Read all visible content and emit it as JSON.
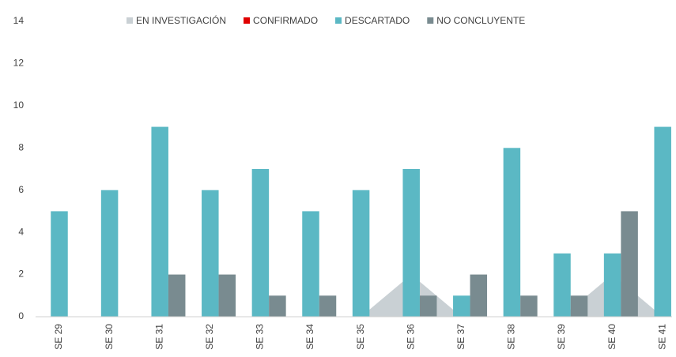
{
  "chart_data": {
    "type": "bar",
    "categories": [
      "SE 29",
      "SE 30",
      "SE 31",
      "SE 32",
      "SE 33",
      "SE 34",
      "SE 35",
      "SE 36",
      "SE 37",
      "SE 38",
      "SE 39",
      "SE 40",
      "SE 41"
    ],
    "series": [
      {
        "name": "EN INVESTIGACIÓN",
        "color": "#c9d0d4",
        "kind": "area",
        "values": [
          0,
          0,
          0,
          0,
          0,
          0,
          0,
          2,
          0,
          0,
          0,
          2,
          0
        ]
      },
      {
        "name": "CONFIRMADO",
        "color": "#e00000",
        "kind": "bar",
        "values": [
          0,
          0,
          0,
          0,
          0,
          0,
          0,
          0,
          0,
          0,
          0,
          0,
          0
        ]
      },
      {
        "name": "DESCARTADO",
        "color": "#5bb8c4",
        "kind": "bar",
        "values": [
          5,
          6,
          9,
          6,
          7,
          5,
          6,
          7,
          1,
          8,
          3,
          3,
          9
        ]
      },
      {
        "name": "NO CONCLUYENTE",
        "color": "#798b90",
        "kind": "bar",
        "values": [
          0,
          0,
          2,
          2,
          1,
          1,
          0,
          1,
          2,
          1,
          1,
          5,
          0
        ]
      }
    ],
    "ylim": [
      0,
      14
    ],
    "yticks": [
      0,
      2,
      4,
      6,
      8,
      10,
      12,
      14
    ],
    "grid": false,
    "legend": "top"
  }
}
